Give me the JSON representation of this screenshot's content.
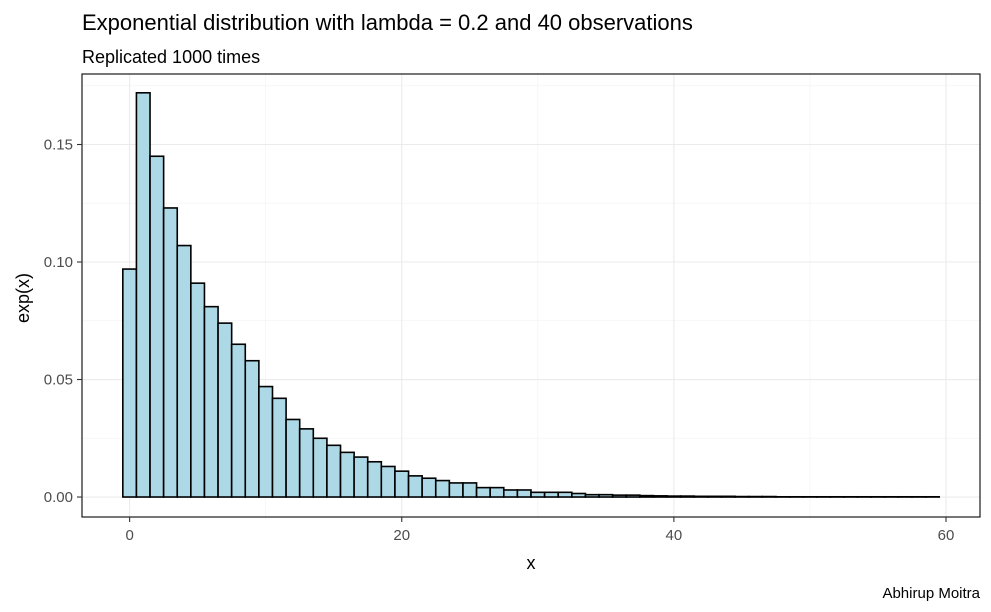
{
  "chart_data": {
    "type": "bar",
    "title": "Exponential distribution with lambda = 0.2 and 40 observations",
    "subtitle": "Replicated 1000 times",
    "xlabel": "x",
    "ylabel": "exp(x)",
    "caption": "Abhirup Moitra",
    "xlim": [
      -3.5,
      62.5
    ],
    "ylim": [
      -0.0085,
      0.18
    ],
    "x_ticks": [
      0,
      20,
      40,
      60
    ],
    "x_tick_labels": [
      "0",
      "20",
      "40",
      "60"
    ],
    "y_ticks": [
      0.0,
      0.05,
      0.1,
      0.15
    ],
    "y_tick_labels": [
      "0.00",
      "0.05",
      "0.10",
      "0.15"
    ],
    "grid": true,
    "bin_width": 1,
    "bar_fill": "#add8e6",
    "bar_outline": "#000000",
    "x": [
      0,
      1,
      2,
      3,
      4,
      5,
      6,
      7,
      8,
      9,
      10,
      11,
      12,
      13,
      14,
      15,
      16,
      17,
      18,
      19,
      20,
      21,
      22,
      23,
      24,
      25,
      26,
      27,
      28,
      29,
      30,
      31,
      32,
      33,
      34,
      35,
      36,
      37,
      38,
      39,
      40,
      41,
      42,
      43,
      44,
      45,
      46,
      47,
      48,
      49,
      50,
      51,
      52,
      53,
      54,
      55,
      56,
      57,
      58,
      59
    ],
    "values": [
      0.097,
      0.172,
      0.145,
      0.123,
      0.107,
      0.091,
      0.081,
      0.074,
      0.065,
      0.058,
      0.047,
      0.042,
      0.033,
      0.029,
      0.025,
      0.022,
      0.019,
      0.017,
      0.015,
      0.013,
      0.011,
      0.009,
      0.008,
      0.007,
      0.006,
      0.006,
      0.004,
      0.004,
      0.003,
      0.003,
      0.002,
      0.002,
      0.002,
      0.0015,
      0.001,
      0.001,
      0.0008,
      0.0008,
      0.0006,
      0.0005,
      0.0004,
      0.0004,
      0.0003,
      0.0003,
      0.0003,
      0.0002,
      0.0002,
      0.0002,
      0.0001,
      0.0001,
      0.0001,
      0.0001,
      0.0001,
      0.0001,
      0.0001,
      0.0001,
      0.0001,
      0.0001,
      0.0001,
      0.0001
    ]
  }
}
